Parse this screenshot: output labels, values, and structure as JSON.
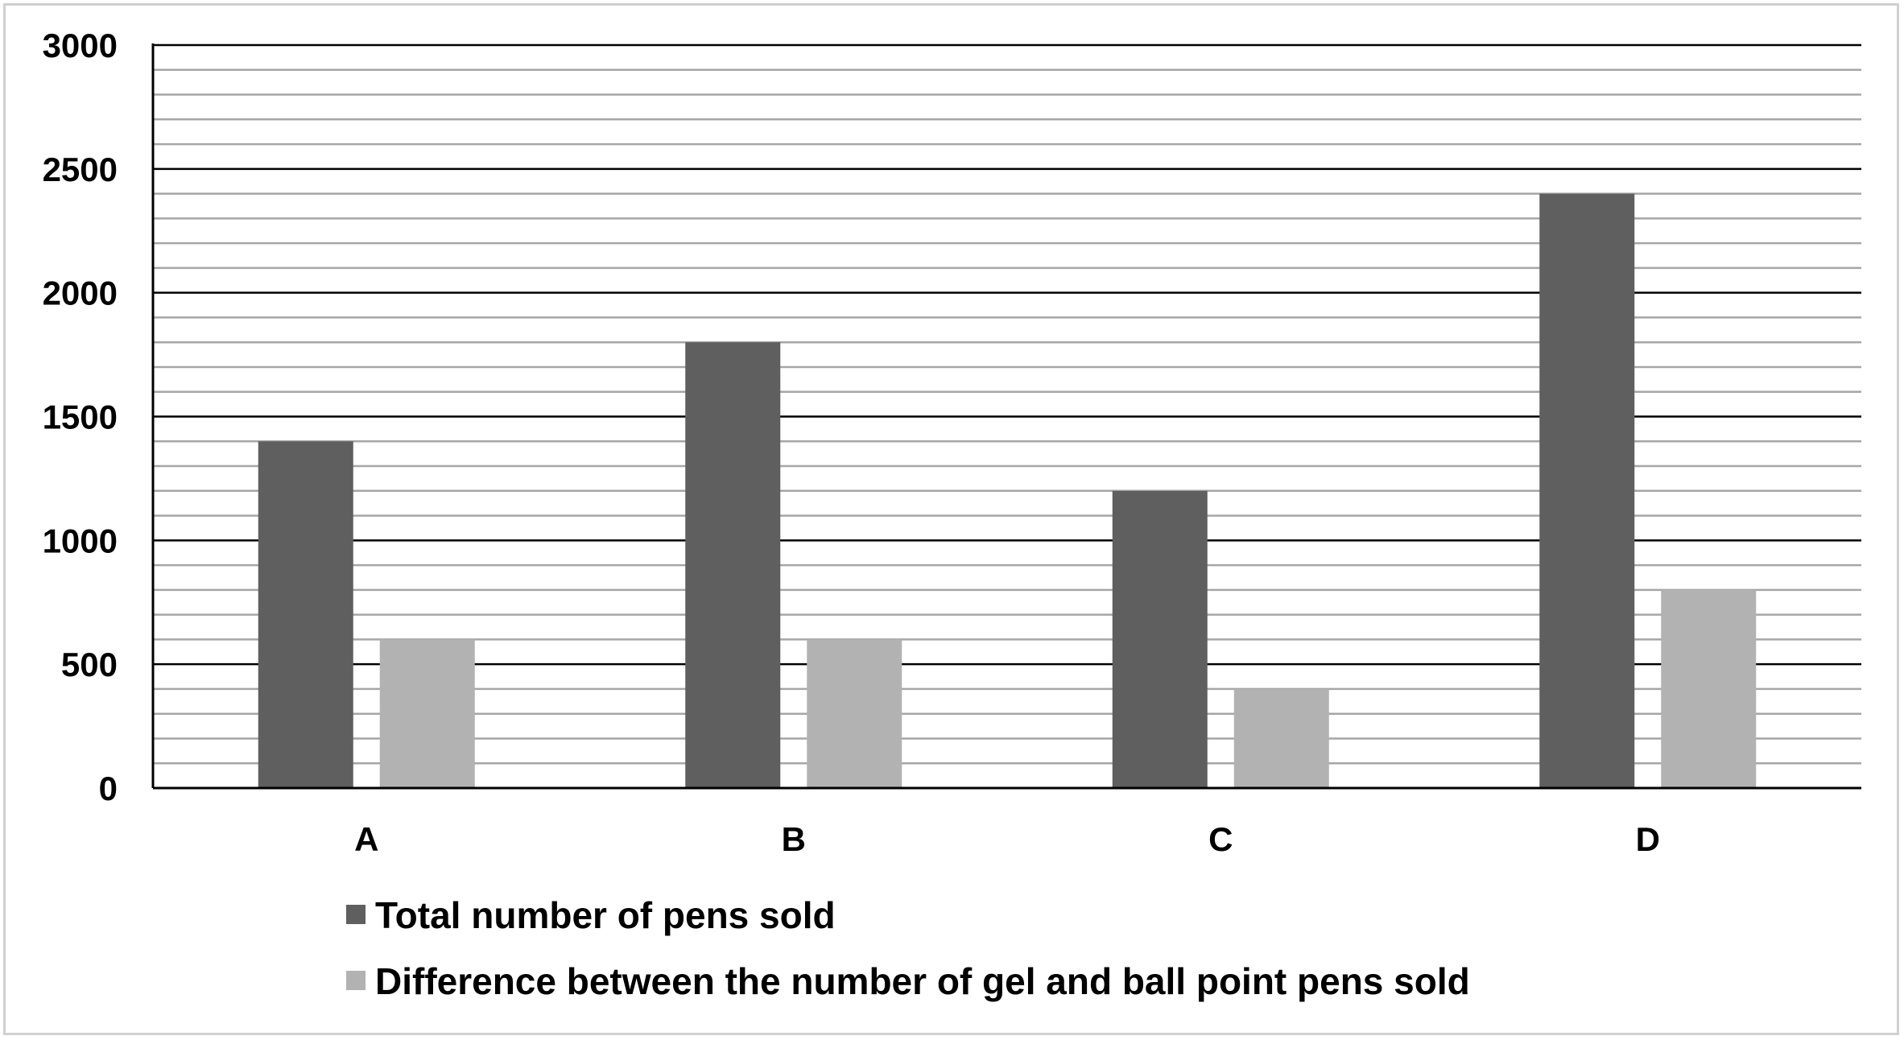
{
  "chart_data": {
    "type": "bar",
    "title": "",
    "xlabel": "",
    "ylabel": "",
    "categories": [
      "A",
      "B",
      "C",
      "D"
    ],
    "ylim": [
      0,
      3000
    ],
    "y_ticks": [
      "0",
      "500",
      "1000",
      "1500",
      "2000",
      "2500",
      "3000"
    ],
    "y_tick_values": [
      0,
      500,
      1000,
      1500,
      2000,
      2500,
      3000
    ],
    "minor_grid_step": 100,
    "grid": true,
    "legend_position": "bottom",
    "series": [
      {
        "name": "Total number of pens sold",
        "color": "#5f5f5f",
        "values": [
          1400,
          1800,
          1200,
          2400
        ]
      },
      {
        "name": "Difference between the number of gel and ball point pens sold",
        "color": "#b2b2b2",
        "values": [
          600,
          600,
          400,
          800
        ]
      }
    ]
  }
}
